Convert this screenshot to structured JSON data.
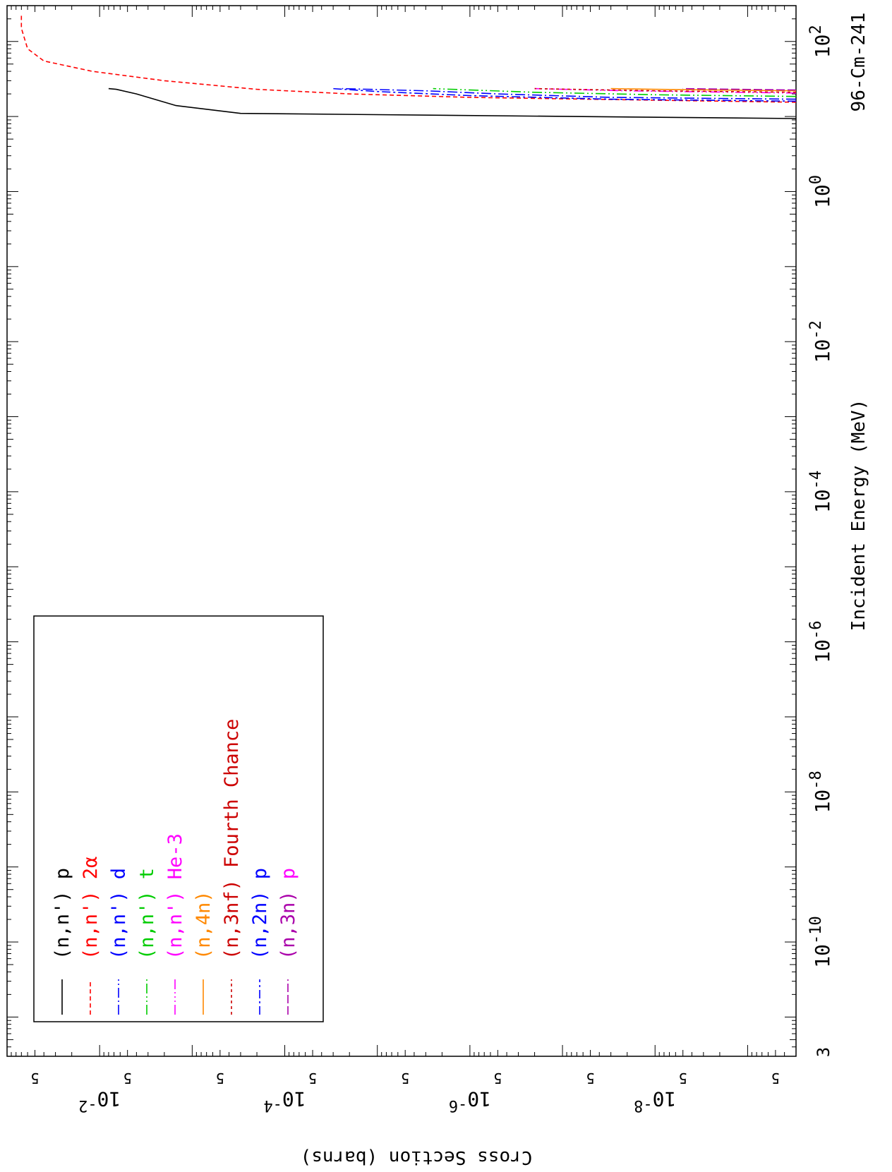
{
  "chart_data": {
    "type": "line",
    "orientation": "rotated-90-clockwise",
    "nuclide": "96-Cm-241",
    "xlabel": "Incident Energy (MeV)",
    "ylabel": "Cross Section (barns)",
    "x_scale": "log",
    "y_scale": "log",
    "xlim": [
      3e-12,
      300
    ],
    "ylim": [
      3e-10,
      0.1
    ],
    "x_ticks": [
      {
        "exp": "-10",
        "value": 1e-10
      },
      {
        "exp": "-8",
        "value": 1e-08
      },
      {
        "exp": "-6",
        "value": 1e-06
      },
      {
        "exp": "-4",
        "value": 0.0001
      },
      {
        "exp": "-2",
        "value": 0.01
      },
      {
        "exp": "0",
        "value": 1
      },
      {
        "exp": "2",
        "value": 100
      }
    ],
    "x_edge_label": "3",
    "y_ticks": [
      {
        "exp": "-2",
        "value": 0.01
      },
      {
        "exp": "-4",
        "value": 0.0001
      },
      {
        "exp": "-6",
        "value": 1e-06
      },
      {
        "exp": "-8",
        "value": 1e-08
      }
    ],
    "tick_base": "10",
    "minor_label": "5",
    "legend_placement": "lower-left",
    "series": [
      {
        "name": "(n,n') p",
        "prefix": "(n,n')",
        "suffix": " p",
        "color": "#000000",
        "suffix_color": "#000000",
        "dash": "",
        "points": [
          [
            9.4,
            3e-10
          ],
          [
            11,
            0.0003
          ],
          [
            14,
            0.0015
          ],
          [
            20,
            0.004
          ],
          [
            23,
            0.0066
          ],
          [
            23.5,
            0.008
          ]
        ]
      },
      {
        "name": "(n,n') 2α",
        "prefix": "(n,n')",
        "suffix": " 2α",
        "color": "#ff0000",
        "suffix_color": "#ff0000",
        "dash": "6,4",
        "points": [
          [
            15.5,
            3e-10
          ],
          [
            16.5,
            1e-08
          ],
          [
            18,
            1e-06
          ],
          [
            20,
            2e-05
          ],
          [
            23,
            0.0002
          ],
          [
            30,
            0.002
          ],
          [
            40,
            0.012
          ],
          [
            55,
            0.04
          ],
          [
            80,
            0.06
          ],
          [
            150,
            0.07
          ],
          [
            220,
            0.07
          ]
        ]
      },
      {
        "name": "(n,n') d",
        "prefix": "(n,n')",
        "suffix": " d",
        "color": "#0000ff",
        "suffix_color": "#0000ff",
        "dash": "14,4,2,4",
        "points": [
          [
            17,
            3e-10
          ],
          [
            18,
            3e-08
          ],
          [
            20,
            5e-07
          ],
          [
            22,
            3e-06
          ],
          [
            23.5,
            2.4e-05
          ]
        ]
      },
      {
        "name": "(n,n') t",
        "prefix": "(n,n')",
        "suffix": " t",
        "color": "#00cc00",
        "suffix_color": "#00cc00",
        "dash": "14,4,2,4,2,4",
        "points": [
          [
            18.5,
            3e-10
          ],
          [
            19.5,
            1e-08
          ],
          [
            21,
            2e-07
          ],
          [
            23.5,
            2.5e-06
          ]
        ]
      },
      {
        "name": "(n,n') He-3",
        "prefix": "(n,n')",
        "suffix": " He-3",
        "color": "#ff00ff",
        "suffix_color": "#ff00ff",
        "dash": "14,4,2,4,2,4,2,4",
        "points": [
          [
            20.5,
            3e-10
          ],
          [
            22,
            2e-08
          ],
          [
            23.5,
            2e-07
          ]
        ]
      },
      {
        "name": "(n,4n)",
        "prefix": "(n,4n)",
        "suffix": "",
        "color": "#ff8800",
        "suffix_color": "#ff8800",
        "dash": "",
        "points": [
          [
            22,
            3e-10
          ],
          [
            23,
            1e-08
          ],
          [
            23.5,
            3e-08
          ]
        ]
      },
      {
        "name": "(n,3nf) Fourth Chance",
        "prefix": "(n,3nf)",
        "suffix": " Fourth Chance",
        "color": "#cc0000",
        "suffix_color": "#cc0000",
        "dash": "4,4",
        "points": [
          [
            21,
            3e-10
          ],
          [
            22,
            1e-08
          ],
          [
            23.5,
            2e-07
          ]
        ]
      },
      {
        "name": "(n,2n) p",
        "prefix": "(n,2n)",
        "suffix": " p",
        "color": "#0000ff",
        "suffix_color": "#0000ff",
        "dash": "12,4,3,4",
        "points": [
          [
            16,
            3e-10
          ],
          [
            17,
            3e-08
          ],
          [
            19,
            1e-06
          ],
          [
            21.5,
            1e-05
          ],
          [
            23.5,
            3e-05
          ]
        ]
      },
      {
        "name": "(n,3n) p",
        "prefix": "(n,3n)",
        "suffix": " p",
        "color": "#aa00aa",
        "suffix_color": "#ff00ff",
        "dash": "12,4",
        "points": [
          [
            22.5,
            3e-10
          ],
          [
            23.5,
            5e-09
          ]
        ]
      }
    ]
  }
}
